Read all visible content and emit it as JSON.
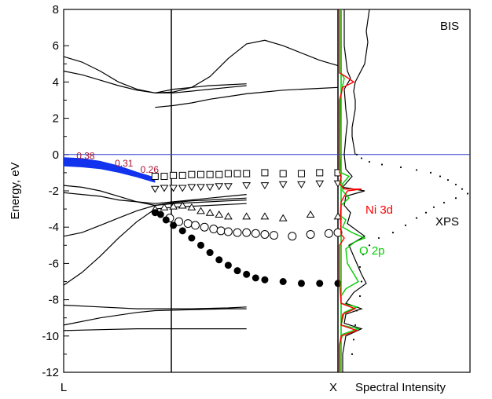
{
  "chart_data": {
    "type": "line",
    "ylabel": "Energy, eV",
    "ylim": [
      -12,
      8
    ],
    "y_ticks": [
      "8",
      "6",
      "4",
      "2",
      "0",
      "-2",
      "-4",
      "-6",
      "-8",
      "-10",
      "-12"
    ],
    "k_labels": [
      "L",
      "X"
    ],
    "fermi_level": 0,
    "band_widths": [
      {
        "label": "0.38",
        "k": 0.12,
        "y": -0.25
      },
      {
        "label": "0.31",
        "k": 0.33,
        "y": -0.65
      },
      {
        "label": "0.26",
        "k": 0.47,
        "y": -1.0
      }
    ],
    "bands": [
      {
        "x": [
          0,
          0.1,
          0.2,
          0.3,
          0.4,
          0.5,
          0.6,
          0.7,
          0.8,
          0.9,
          1.0
        ],
        "y": [
          5.4,
          5.1,
          4.6,
          4.0,
          3.6,
          3.4,
          3.6,
          3.7,
          3.8,
          3.85,
          3.9
        ]
      },
      {
        "x": [
          0,
          0.1,
          0.2,
          0.3,
          0.4,
          0.5,
          0.6,
          0.7,
          0.8,
          0.9,
          1.0
        ],
        "y": [
          4.6,
          4.4,
          4.1,
          3.8,
          3.55,
          3.4,
          3.4,
          3.5,
          3.6,
          3.7,
          3.8
        ]
      },
      {
        "x": [
          0.5,
          0.6,
          0.7,
          0.8,
          0.9,
          1.0,
          1.1,
          1.2,
          1.25,
          1.4,
          1.5
        ],
        "y": [
          3.4,
          3.45,
          3.7,
          4.3,
          5.3,
          6.1,
          6.3,
          6.0,
          5.8,
          5.2,
          4.9
        ]
      },
      {
        "x": [
          0.5,
          0.6,
          0.7,
          0.8,
          0.9,
          1.0,
          1.1,
          1.2,
          1.3,
          1.4,
          1.5
        ],
        "y": [
          2.6,
          2.7,
          2.85,
          3.05,
          3.2,
          3.35,
          3.45,
          3.55,
          3.6,
          3.65,
          3.7
        ]
      },
      {
        "x": [
          0,
          0.1,
          0.2,
          0.3,
          0.4,
          0.5,
          0.6,
          0.7,
          0.8,
          0.9,
          1.0
        ],
        "y": [
          -1.7,
          -1.8,
          -2.0,
          -2.3,
          -2.6,
          -2.8,
          -2.7,
          -2.65,
          -2.6,
          -2.55,
          -2.5
        ]
      },
      {
        "x": [
          0,
          0.1,
          0.2,
          0.3,
          0.4,
          0.5,
          0.6,
          0.7,
          0.8,
          0.9,
          1.0
        ],
        "y": [
          -4.5,
          -4.3,
          -3.9,
          -3.5,
          -3.1,
          -2.8,
          -2.65,
          -2.55,
          -2.5,
          -2.45,
          -2.4
        ]
      },
      {
        "x": [
          0,
          0.1,
          0.2,
          0.3,
          0.4,
          0.5,
          0.6,
          0.7,
          0.8,
          0.9,
          1.0
        ],
        "y": [
          -7.2,
          -6.5,
          -5.6,
          -4.6,
          -3.7,
          -3.0,
          -2.9,
          -2.85,
          -2.8,
          -2.75,
          -2.7
        ]
      },
      {
        "x": [
          0,
          0.1,
          0.2,
          0.3,
          0.4,
          0.5,
          0.6,
          0.7,
          0.8,
          0.9,
          1.0
        ],
        "y": [
          -2.1,
          -2.2,
          -2.3,
          -2.5,
          -2.6,
          -2.7,
          -2.6,
          -2.5,
          -2.4,
          -2.3,
          -2.2
        ]
      },
      {
        "x": [
          0,
          0.2,
          0.4,
          0.5,
          0.7,
          0.9,
          1.0
        ],
        "y": [
          -8.3,
          -8.4,
          -8.5,
          -8.5,
          -8.5,
          -8.45,
          -8.4
        ]
      },
      {
        "x": [
          0,
          0.2,
          0.4,
          0.5,
          0.7,
          0.9,
          1.0
        ],
        "y": [
          -9.4,
          -9.0,
          -8.7,
          -8.6,
          -8.55,
          -8.5,
          -8.5
        ]
      },
      {
        "x": [
          0,
          0.2,
          0.4,
          0.5,
          0.7,
          0.9,
          1.0
        ],
        "y": [
          -9.7,
          -9.65,
          -9.6,
          -9.6,
          -9.6,
          -9.6,
          -9.6
        ]
      }
    ],
    "series": [
      {
        "name": "Ni 3d",
        "color": "#ff0000"
      },
      {
        "name": "O 2p",
        "color": "#00dd00"
      }
    ],
    "spectra_labels": {
      "bis": "BIS",
      "xps": "XPS",
      "ni3d": "Ni 3d",
      "o2p": "O 2p",
      "xlabel": "Spectral Intensity"
    },
    "markers": {
      "squares": [
        [
          0.5,
          -1.2
        ],
        [
          0.55,
          -1.2
        ],
        [
          0.6,
          -1.15
        ],
        [
          0.65,
          -1.15
        ],
        [
          0.7,
          -1.1
        ],
        [
          0.75,
          -1.1
        ],
        [
          0.8,
          -1.1
        ],
        [
          0.85,
          -1.1
        ],
        [
          0.9,
          -1.05
        ],
        [
          0.95,
          -1.05
        ],
        [
          1.0,
          -1.05
        ],
        [
          1.1,
          -1.0
        ],
        [
          1.2,
          -1.05
        ],
        [
          1.3,
          -1.05
        ],
        [
          1.4,
          -1.0
        ],
        [
          1.5,
          -1.0
        ]
      ],
      "triangles_down": [
        [
          0.5,
          -1.9
        ],
        [
          0.55,
          -1.85
        ],
        [
          0.6,
          -1.85
        ],
        [
          0.65,
          -1.85
        ],
        [
          0.7,
          -1.8
        ],
        [
          0.75,
          -1.8
        ],
        [
          0.8,
          -1.8
        ],
        [
          0.85,
          -1.75
        ],
        [
          0.9,
          -1.75
        ],
        [
          1.0,
          -1.7
        ],
        [
          1.1,
          -1.7
        ],
        [
          1.2,
          -1.65
        ],
        [
          1.3,
          -1.65
        ],
        [
          1.4,
          -1.6
        ],
        [
          1.5,
          -1.6
        ]
      ],
      "triangles_up": [
        [
          0.5,
          -3.0
        ],
        [
          0.55,
          -2.9
        ],
        [
          0.6,
          -2.85
        ],
        [
          0.65,
          -2.8
        ],
        [
          0.7,
          -2.9
        ],
        [
          0.75,
          -3.1
        ],
        [
          0.8,
          -3.2
        ],
        [
          0.85,
          -3.3
        ],
        [
          0.9,
          -3.4
        ],
        [
          1.0,
          -3.4
        ],
        [
          1.1,
          -3.4
        ],
        [
          1.2,
          -3.5
        ],
        [
          1.35,
          -3.3
        ],
        [
          1.5,
          -3.4
        ]
      ],
      "circles_open": [
        [
          0.58,
          -3.5
        ],
        [
          0.63,
          -3.7
        ],
        [
          0.68,
          -3.8
        ],
        [
          0.72,
          -3.9
        ],
        [
          0.77,
          -4.0
        ],
        [
          0.82,
          -4.1
        ],
        [
          0.86,
          -4.2
        ],
        [
          0.9,
          -4.25
        ],
        [
          0.95,
          -4.3
        ],
        [
          1.0,
          -4.3
        ],
        [
          1.05,
          -4.35
        ],
        [
          1.1,
          -4.4
        ],
        [
          1.15,
          -4.45
        ],
        [
          1.25,
          -4.5
        ],
        [
          1.35,
          -4.4
        ],
        [
          1.45,
          -4.35
        ],
        [
          1.5,
          -4.3
        ]
      ],
      "circles_filled": [
        [
          0.5,
          -3.2
        ],
        [
          0.53,
          -3.3
        ],
        [
          0.56,
          -3.6
        ],
        [
          0.6,
          -3.9
        ],
        [
          0.65,
          -4.2
        ],
        [
          0.7,
          -4.6
        ],
        [
          0.75,
          -5.0
        ],
        [
          0.8,
          -5.4
        ],
        [
          0.85,
          -5.8
        ],
        [
          0.9,
          -6.1
        ],
        [
          0.95,
          -6.4
        ],
        [
          1.0,
          -6.6
        ],
        [
          1.05,
          -6.8
        ],
        [
          1.1,
          -6.9
        ],
        [
          1.2,
          -7.0
        ],
        [
          1.3,
          -7.1
        ],
        [
          1.4,
          -7.1
        ],
        [
          1.5,
          -7.1
        ]
      ]
    }
  }
}
